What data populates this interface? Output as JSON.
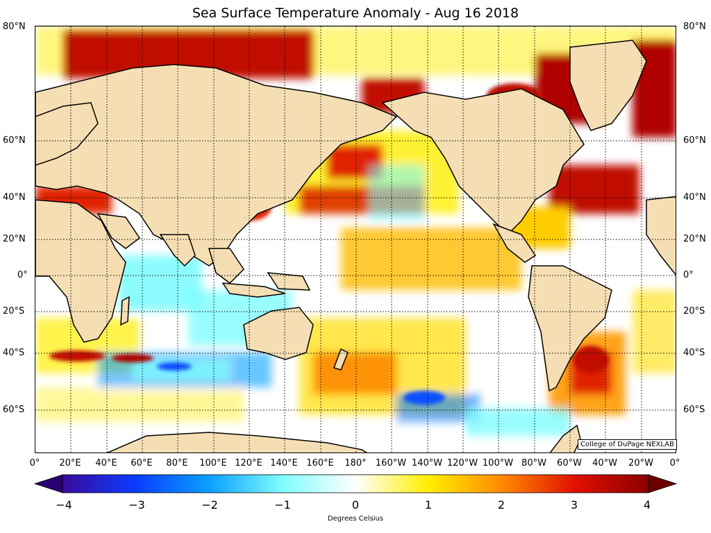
{
  "title": "Sea Surface Temperature Anomaly - Aug 16 2018",
  "credit": "College of DuPage NEXLAB",
  "lat_labels": [
    "80°N",
    "60°N",
    "40°N",
    "20°N",
    "0°",
    "20°S",
    "40°S",
    "60°S"
  ],
  "lon_labels": [
    "0°",
    "20°E",
    "40°E",
    "60°E",
    "80°E",
    "100°E",
    "120°E",
    "140°E",
    "160°E",
    "180°",
    "160°W",
    "140°W",
    "120°W",
    "100°W",
    "80°W",
    "60°W",
    "40°W",
    "20°W",
    "0°"
  ],
  "colorbar": {
    "ticks": [
      "−4",
      "−3",
      "−2",
      "−1",
      "0",
      "1",
      "2",
      "3",
      "4"
    ],
    "label": "Degrees Celsius",
    "range": [
      -4,
      4
    ],
    "colors": {
      "minus4": "#3a0a9c",
      "minus3": "#0a3cff",
      "minus2": "#0aa0ff",
      "minus1": "#7ffcff",
      "zero": "#ffffff",
      "plus1": "#ffee00",
      "plus2": "#ff8a00",
      "plus3": "#e01000",
      "plus4": "#8b0000"
    }
  },
  "map": {
    "land_color": "#f5deb3",
    "ocean_color": "#ffffff",
    "grid": "dotted"
  }
}
